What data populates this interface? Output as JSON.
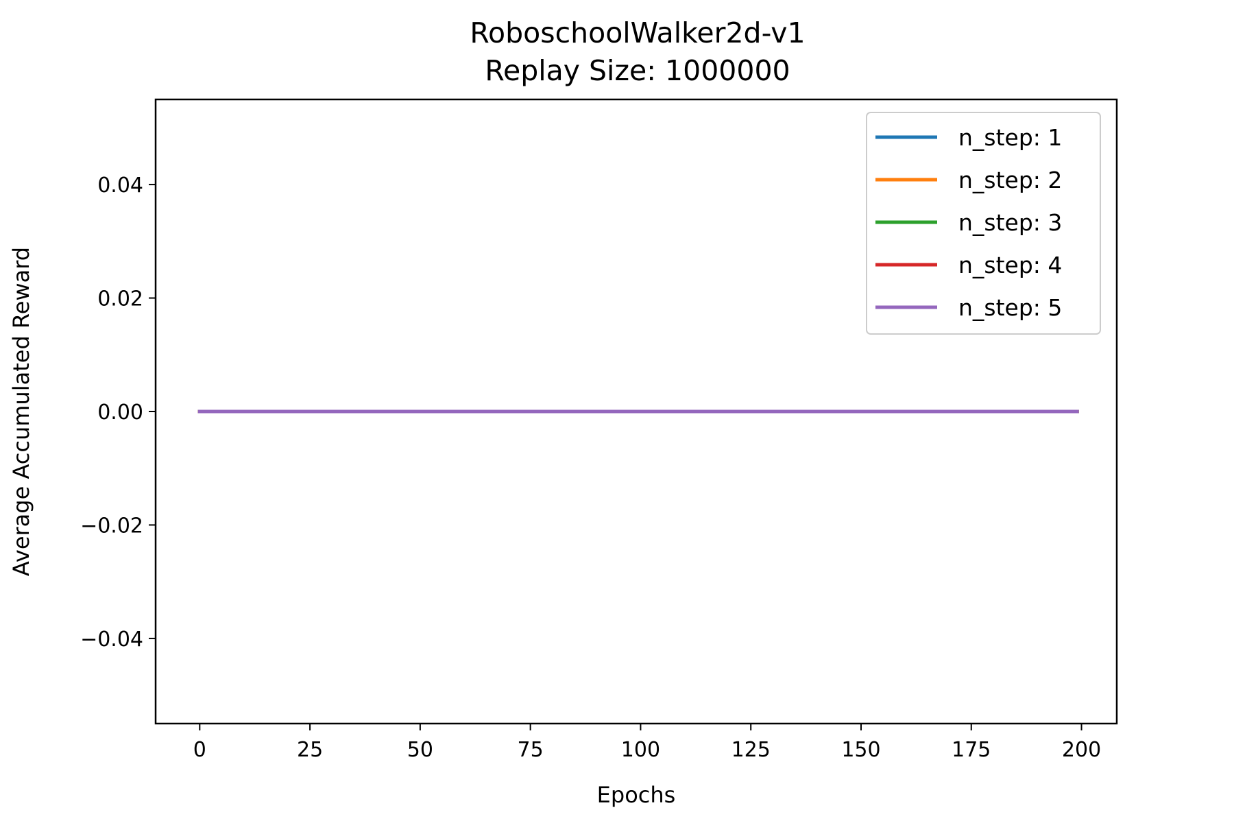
{
  "chart_data": {
    "type": "line",
    "title": [
      "RoboschoolWalker2d-v1",
      "Replay Size: 1000000"
    ],
    "xlabel": "Epochs",
    "ylabel": "Average Accumulated Reward",
    "xlim": [
      -10,
      208
    ],
    "ylim": [
      -0.055,
      0.055
    ],
    "xticks": [
      0,
      25,
      50,
      75,
      100,
      125,
      150,
      175,
      200
    ],
    "xtick_labels": [
      "0",
      "25",
      "50",
      "75",
      "100",
      "125",
      "150",
      "175",
      "200"
    ],
    "yticks": [
      0.04,
      0.02,
      0.0,
      -0.02,
      -0.04
    ],
    "ytick_labels": [
      "0.04",
      "0.02",
      "0.00",
      "−0.02",
      "−0.04"
    ],
    "grid": false,
    "legend_position": "top-right",
    "series": [
      {
        "name": "n_step: 1",
        "color": "#1f77b4",
        "x": [
          0,
          199
        ],
        "y": [
          0,
          0
        ]
      },
      {
        "name": "n_step: 2",
        "color": "#ff7f0e",
        "x": [
          0,
          199
        ],
        "y": [
          0,
          0
        ]
      },
      {
        "name": "n_step: 3",
        "color": "#2ca02c",
        "x": [
          0,
          199
        ],
        "y": [
          0,
          0
        ]
      },
      {
        "name": "n_step: 4",
        "color": "#d62728",
        "x": [
          0,
          199
        ],
        "y": [
          0,
          0
        ]
      },
      {
        "name": "n_step: 5",
        "color": "#9467bd",
        "x": [
          0,
          199
        ],
        "y": [
          0,
          0
        ]
      }
    ]
  }
}
